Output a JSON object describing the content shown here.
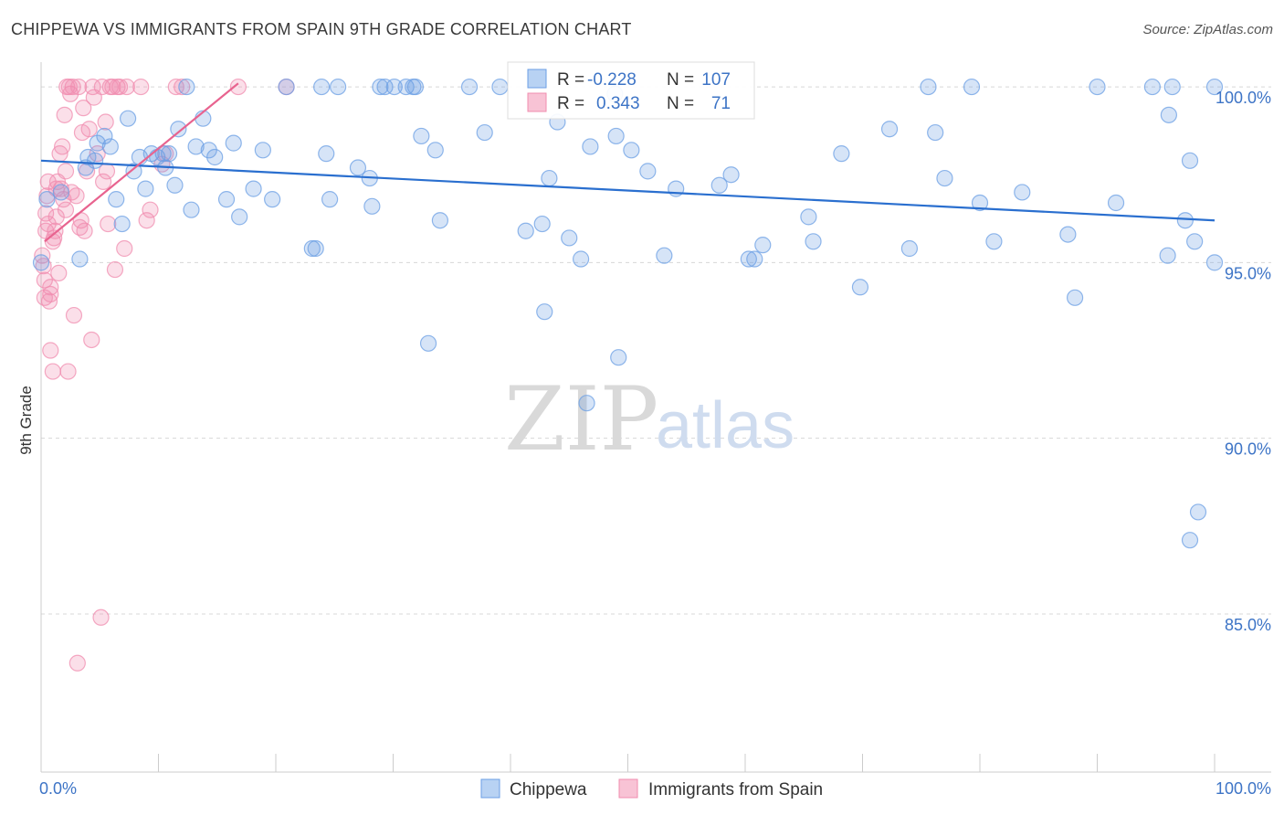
{
  "title": "CHIPPEWA VS IMMIGRANTS FROM SPAIN 9TH GRADE CORRELATION CHART",
  "source": "Source: ZipAtlas.com",
  "watermark": {
    "zip": "ZIP",
    "atlas": "atlas"
  },
  "chart_data": {
    "type": "scatter",
    "ylabel": "9th Grade",
    "xlim": [
      0,
      100
    ],
    "ylim": [
      80.5,
      100.6
    ],
    "x_tick_labels": {
      "min": "0.0%",
      "max": "100.0%"
    },
    "y_ticks": [
      {
        "value": 100,
        "label": "100.0%"
      },
      {
        "value": 95,
        "label": "95.0%"
      },
      {
        "value": 90,
        "label": "90.0%"
      },
      {
        "value": 85,
        "label": "85.0%"
      }
    ],
    "colors": {
      "chippewa": "#6b9fe4",
      "spain": "#f08caf",
      "chippewa_line": "#2a6fcf",
      "spain_line": "#e8638f"
    },
    "stats": [
      {
        "r_label": "R =",
        "r_value": "-0.228",
        "n_label": "N =",
        "n_value": "107"
      },
      {
        "r_label": "R =",
        "r_value": "0.343",
        "n_label": "N =",
        "n_value": "71"
      }
    ],
    "legend": [
      "Chippewa",
      "Immigrants from Spain"
    ],
    "series": [
      {
        "name": "Chippewa",
        "trend": [
          [
            0,
            97.9
          ],
          [
            100,
            96.2
          ]
        ],
        "points": [
          [
            0,
            95
          ],
          [
            0.5,
            96.8
          ],
          [
            1.7,
            97
          ],
          [
            3.3,
            95.1
          ],
          [
            3.8,
            97.7
          ],
          [
            4,
            98
          ],
          [
            4.6,
            97.9
          ],
          [
            4.8,
            98.4
          ],
          [
            5.4,
            98.6
          ],
          [
            5.9,
            98.3
          ],
          [
            6.4,
            96.8
          ],
          [
            6.9,
            96.1
          ],
          [
            7.4,
            99.1
          ],
          [
            7.9,
            97.6
          ],
          [
            8.4,
            98
          ],
          [
            8.9,
            97.1
          ],
          [
            9.4,
            98.1
          ],
          [
            9.9,
            98
          ],
          [
            10.4,
            98.1
          ],
          [
            10.6,
            97.7
          ],
          [
            10.9,
            98.1
          ],
          [
            11.4,
            97.2
          ],
          [
            11.7,
            98.8
          ],
          [
            12.4,
            100
          ],
          [
            12.8,
            96.5
          ],
          [
            13.2,
            98.3
          ],
          [
            13.8,
            99.1
          ],
          [
            14.3,
            98.2
          ],
          [
            14.8,
            98
          ],
          [
            15.8,
            96.8
          ],
          [
            16.4,
            98.4
          ],
          [
            16.9,
            96.3
          ],
          [
            18.1,
            97.1
          ],
          [
            18.9,
            98.2
          ],
          [
            19.7,
            96.8
          ],
          [
            20.9,
            100
          ],
          [
            23.1,
            95.4
          ],
          [
            23.4,
            95.4
          ],
          [
            23.9,
            100
          ],
          [
            24.3,
            98.1
          ],
          [
            24.6,
            96.8
          ],
          [
            25.3,
            100
          ],
          [
            27.0,
            97.7
          ],
          [
            28.0,
            97.4
          ],
          [
            28.2,
            96.6
          ],
          [
            28.9,
            100
          ],
          [
            29.3,
            100
          ],
          [
            30.1,
            100
          ],
          [
            31.1,
            100
          ],
          [
            31.7,
            100
          ],
          [
            31.9,
            100
          ],
          [
            32.4,
            98.6
          ],
          [
            33.0,
            92.7
          ],
          [
            33.6,
            98.2
          ],
          [
            34.0,
            96.2
          ],
          [
            36.5,
            100
          ],
          [
            37.8,
            98.7
          ],
          [
            39.1,
            100
          ],
          [
            41.3,
            95.9
          ],
          [
            42.7,
            96.1
          ],
          [
            42.9,
            93.6
          ],
          [
            43.3,
            97.4
          ],
          [
            44.0,
            99
          ],
          [
            45.0,
            95.7
          ],
          [
            46.0,
            95.1
          ],
          [
            46.5,
            91
          ],
          [
            46.8,
            98.3
          ],
          [
            48.9,
            99.8
          ],
          [
            49.0,
            98.6
          ],
          [
            49.2,
            92.3
          ],
          [
            50.3,
            98.2
          ],
          [
            51.7,
            97.6
          ],
          [
            53.1,
            95.2
          ],
          [
            54.1,
            97.1
          ],
          [
            57.8,
            97.2
          ],
          [
            58.8,
            97.5
          ],
          [
            60.3,
            95.1
          ],
          [
            60.8,
            95.1
          ],
          [
            61.5,
            95.5
          ],
          [
            65.4,
            96.3
          ],
          [
            65.8,
            95.6
          ],
          [
            68.2,
            98.1
          ],
          [
            69.8,
            94.3
          ],
          [
            72.3,
            98.8
          ],
          [
            74.0,
            95.4
          ],
          [
            75.6,
            100
          ],
          [
            76.2,
            98.7
          ],
          [
            77.0,
            97.4
          ],
          [
            79.3,
            100
          ],
          [
            80.0,
            96.7
          ],
          [
            81.2,
            95.6
          ],
          [
            83.6,
            97
          ],
          [
            87.5,
            95.8
          ],
          [
            88.1,
            94
          ],
          [
            90.0,
            100
          ],
          [
            91.6,
            96.7
          ],
          [
            94.7,
            100
          ],
          [
            96.0,
            95.2
          ],
          [
            96.4,
            100
          ],
          [
            97.5,
            96.2
          ],
          [
            97.9,
            97.9
          ],
          [
            100,
            100
          ],
          [
            100,
            95
          ],
          [
            98.6,
            87.9
          ],
          [
            97.9,
            87.1
          ],
          [
            96.1,
            99.2
          ],
          [
            98.3,
            95.6
          ]
        ]
      },
      {
        "name": "Immigrants from Spain",
        "trend": [
          [
            0.3,
            95.6
          ],
          [
            16.8,
            100.1
          ]
        ],
        "points": [
          [
            0.1,
            95.2
          ],
          [
            0.2,
            94.9
          ],
          [
            0.3,
            94.5
          ],
          [
            0.3,
            94
          ],
          [
            0.4,
            96.4
          ],
          [
            0.4,
            95.9
          ],
          [
            0.5,
            96.9
          ],
          [
            0.6,
            96.1
          ],
          [
            0.7,
            93.9
          ],
          [
            0.8,
            94.3
          ],
          [
            0.8,
            92.5
          ],
          [
            1,
            91.9
          ],
          [
            1.1,
            95.7
          ],
          [
            1.2,
            95.9
          ],
          [
            1.3,
            96.3
          ],
          [
            1.4,
            97.3
          ],
          [
            1.5,
            94.7
          ],
          [
            1.6,
            98.1
          ],
          [
            1.7,
            97.1
          ],
          [
            1.8,
            98.3
          ],
          [
            1.9,
            96.8
          ],
          [
            2,
            99.2
          ],
          [
            2.1,
            97.6
          ],
          [
            2.2,
            100
          ],
          [
            2.3,
            91.9
          ],
          [
            2.4,
            100
          ],
          [
            2.5,
            99.8
          ],
          [
            2.6,
            97
          ],
          [
            2.7,
            100
          ],
          [
            2.8,
            93.5
          ],
          [
            3.0,
            96.9
          ],
          [
            3.2,
            100
          ],
          [
            3.3,
            96
          ],
          [
            3.4,
            96.2
          ],
          [
            3.5,
            98.7
          ],
          [
            3.6,
            99.4
          ],
          [
            3.7,
            95.9
          ],
          [
            3.9,
            97.6
          ],
          [
            4.1,
            98.8
          ],
          [
            4.3,
            92.8
          ],
          [
            4.4,
            100
          ],
          [
            4.5,
            99.7
          ],
          [
            4.8,
            98.1
          ],
          [
            5.1,
            84.9
          ],
          [
            5.2,
            100
          ],
          [
            5.3,
            97.3
          ],
          [
            5.5,
            99
          ],
          [
            5.6,
            97.6
          ],
          [
            5.7,
            96.1
          ],
          [
            5.9,
            100
          ],
          [
            6.1,
            100
          ],
          [
            6.3,
            94.8
          ],
          [
            6.5,
            100
          ],
          [
            6.7,
            100
          ],
          [
            7.1,
            95.4
          ],
          [
            7.3,
            100
          ],
          [
            8.5,
            100
          ],
          [
            9.0,
            96.2
          ],
          [
            9.3,
            96.5
          ],
          [
            10.3,
            97.8
          ],
          [
            10.6,
            98.1
          ],
          [
            11.5,
            100
          ],
          [
            12.0,
            100
          ],
          [
            16.8,
            100
          ],
          [
            20.9,
            100
          ],
          [
            0.6,
            97.3
          ],
          [
            1.0,
            95.6
          ],
          [
            3.1,
            83.6
          ],
          [
            0.8,
            94.1
          ],
          [
            1.3,
            97.1
          ],
          [
            2.1,
            96.5
          ]
        ]
      }
    ]
  }
}
